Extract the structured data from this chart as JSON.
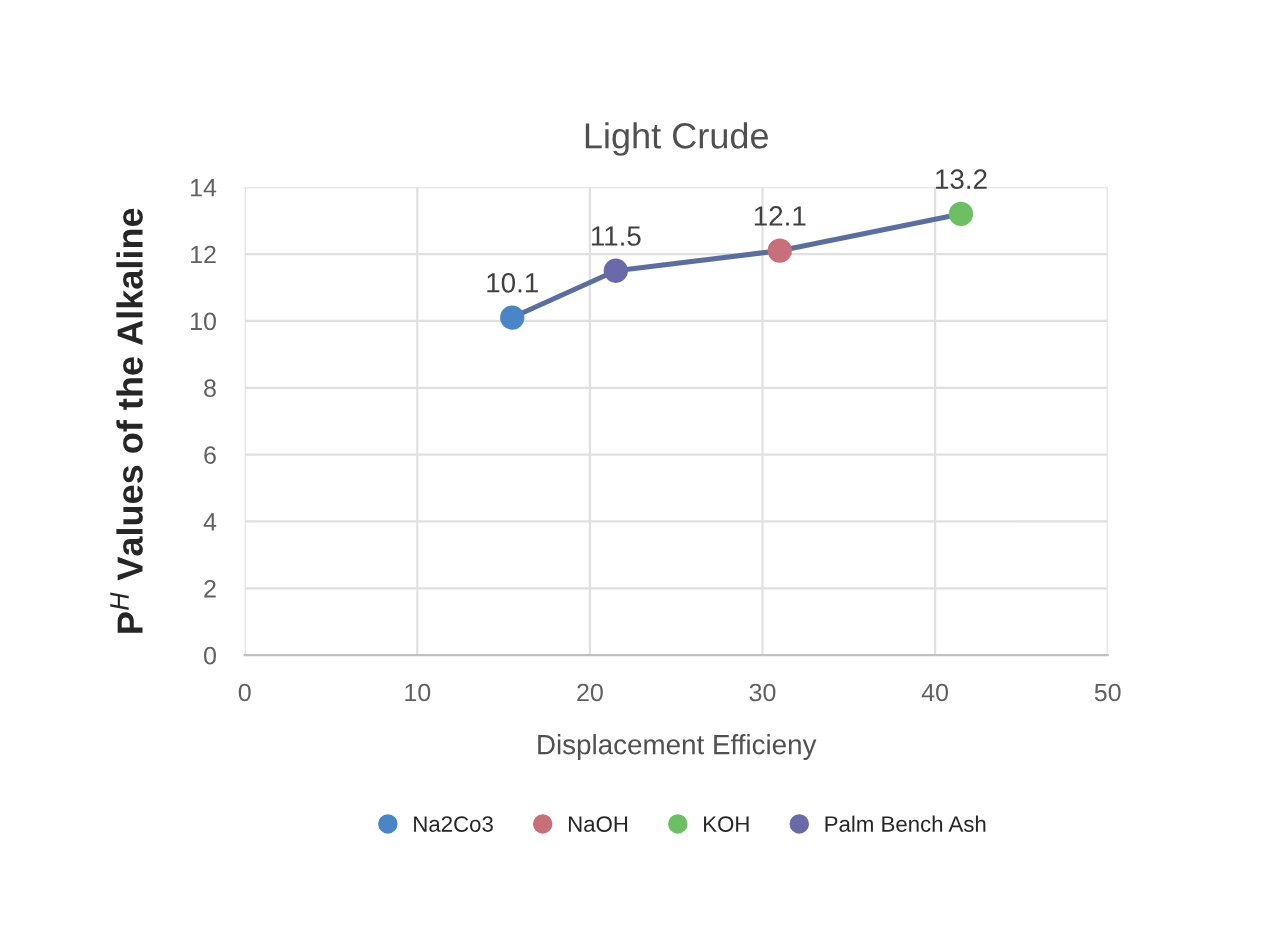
{
  "chart_data": {
    "type": "scatter",
    "title": "Light Crude",
    "xlabel": "Displacement Efficieny",
    "ylabel": "P$^{H}$ Values of the Alkaline",
    "xlim": [
      0,
      50
    ],
    "xticks": [
      0,
      10,
      20,
      30,
      40,
      50
    ],
    "ylim": [
      0,
      14
    ],
    "yticks": [
      0,
      2,
      4,
      6,
      8,
      10,
      12,
      14
    ],
    "grid": true,
    "legend": "bottom",
    "marker": "circle",
    "series": [
      {
        "type": "line",
        "color": "#5b6e9e",
        "x": [
          15.5,
          21.5,
          31,
          41.5
        ],
        "values": [
          10.1,
          11.5,
          12.1,
          13.2
        ]
      },
      {
        "name": "Na2Co3",
        "color": "#4a86c5",
        "x": [
          15.5
        ],
        "values": [
          10.1
        ],
        "value_labels": [
          "10.1"
        ]
      },
      {
        "name": "NaOH",
        "color": "#c8707a",
        "x": [
          31
        ],
        "values": [
          12.1
        ],
        "value_labels": [
          "12.1"
        ]
      },
      {
        "name": "KOH",
        "color": "#6cbf63",
        "x": [
          41.5
        ],
        "values": [
          13.2
        ],
        "value_labels": [
          "13.2"
        ]
      },
      {
        "name": "Palm Bench Ash",
        "color": "#6a6aa8",
        "x": [
          21.5
        ],
        "values": [
          11.5
        ],
        "value_labels": [
          "11.5"
        ]
      }
    ]
  }
}
